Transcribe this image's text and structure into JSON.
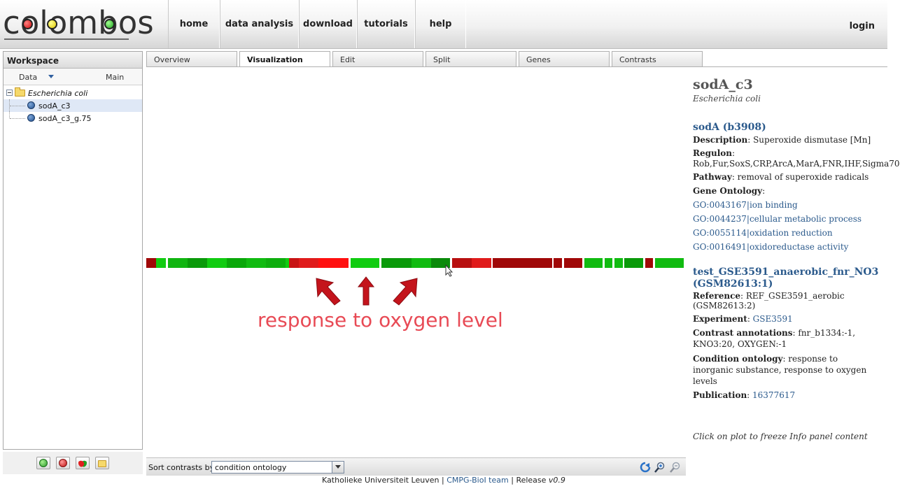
{
  "header": {
    "logo_text": "colombos",
    "nav": [
      "home",
      "data analysis",
      "download",
      "tutorials",
      "help"
    ],
    "login": "login"
  },
  "sidebar": {
    "title": "Workspace",
    "col_data": "Data",
    "col_main": "Main",
    "tree": {
      "root": "Escherichia coli",
      "items": [
        "sodA_c3",
        "sodA_c3_g.75"
      ]
    }
  },
  "tabs": [
    "Overview",
    "Visualization",
    "Edit",
    "Split",
    "Genes",
    "Contrasts"
  ],
  "active_tab": "Visualization",
  "annotation": "response to oxygen level",
  "heatmap_cells": [
    {
      "start": 0,
      "len": 14,
      "color": "#a00808"
    },
    {
      "start": 14,
      "len": 14,
      "color": "#11cc11"
    },
    {
      "start": 31,
      "len": 28,
      "color": "#11b511"
    },
    {
      "start": 59,
      "len": 28,
      "color": "#0a9a0a"
    },
    {
      "start": 87,
      "len": 28,
      "color": "#11cc11"
    },
    {
      "start": 115,
      "len": 28,
      "color": "#0aa80a"
    },
    {
      "start": 143,
      "len": 28,
      "color": "#11bb11"
    },
    {
      "start": 171,
      "len": 28,
      "color": "#0eae0e"
    },
    {
      "start": 199,
      "len": 5,
      "color": "#11cc11"
    },
    {
      "start": 204,
      "len": 14,
      "color": "#c81414"
    },
    {
      "start": 218,
      "len": 28,
      "color": "#e01b1b"
    },
    {
      "start": 246,
      "len": 43,
      "color": "#ff1010"
    },
    {
      "start": 292,
      "len": 41,
      "color": "#11cc11"
    },
    {
      "start": 336,
      "len": 43,
      "color": "#0a9a0a"
    },
    {
      "start": 379,
      "len": 28,
      "color": "#11bb11"
    },
    {
      "start": 407,
      "len": 27,
      "color": "#0a8a0a"
    },
    {
      "start": 437,
      "len": 28,
      "color": "#b81010"
    },
    {
      "start": 465,
      "len": 28,
      "color": "#e01b1b"
    },
    {
      "start": 495,
      "len": 85,
      "color": "#a00808"
    },
    {
      "start": 582,
      "len": 12,
      "color": "#a00808"
    },
    {
      "start": 597,
      "len": 26,
      "color": "#a00808"
    },
    {
      "start": 626,
      "len": 26,
      "color": "#11bb11"
    },
    {
      "start": 655,
      "len": 11,
      "color": "#11bb11"
    },
    {
      "start": 669,
      "len": 12,
      "color": "#11bb11"
    },
    {
      "start": 683,
      "len": 27,
      "color": "#0a9a0a"
    },
    {
      "start": 713,
      "len": 11,
      "color": "#a00808"
    },
    {
      "start": 727,
      "len": 41,
      "color": "#11bb11"
    }
  ],
  "info": {
    "title": "sodA_c3",
    "organism": "Escherichia coli",
    "gene": "sodA (b3908)",
    "description_label": "Description",
    "description": ": Superoxide dismutase [Mn]",
    "regulon_label": "Regulon",
    "regulon": "Rob,Fur,SoxS,CRP,ArcA,MarA,FNR,IHF,Sigma70",
    "pathway_label": "Pathway",
    "pathway": ": removal of superoxide radicals",
    "go_label": "Gene Ontology",
    "go_terms": [
      "GO:0043167|ion binding",
      "GO:0044237|cellular metabolic process",
      "GO:0055114|oxidation reduction",
      "GO:0016491|oxidoreductase activity"
    ],
    "contrast_title": "test_GSE3591_anaerobic_fnr_NO3 (GSM82613:1)",
    "reference_label": "Reference",
    "reference": ": REF_GSE3591_aerobic (GSM82613:2)",
    "experiment_label": "Experiment",
    "experiment": "GSE3591",
    "contrast_ann_label": "Contrast annotations",
    "contrast_ann": ": fnr_b1334:-1, KNO3:20, OXYGEN:-1",
    "condition_label": "Condition ontology",
    "condition": ": response to inorganic substance, response to oxygen levels",
    "publication_label": "Publication",
    "publication": "16377617",
    "hint": "Click on plot to freeze Info panel content"
  },
  "bottombar": {
    "sort_label": "Sort contrasts by:",
    "sort_value": "condition ontology"
  },
  "footer": {
    "institution": "Katholieke Universiteit Leuven",
    "team": "CMPG-BioI team",
    "release_label": "Release",
    "release_version": "v0.9"
  }
}
